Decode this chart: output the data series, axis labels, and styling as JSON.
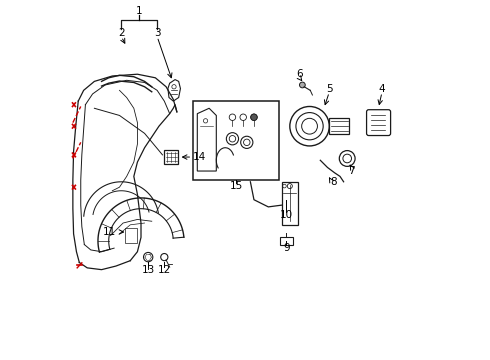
{
  "bg_color": "#ffffff",
  "line_color": "#1a1a1a",
  "red_color": "#cc0000",
  "figsize": [
    4.9,
    3.6
  ],
  "dpi": 100,
  "xlim": [
    0,
    10
  ],
  "ylim": [
    0,
    10
  ]
}
